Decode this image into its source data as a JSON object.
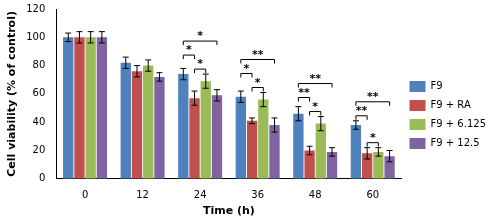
{
  "chart_data": {
    "type": "bar",
    "x_label": "Time (h)",
    "y_label": "Cell viability (% of control)",
    "categories": [
      "0",
      "12",
      "24",
      "36",
      "48",
      "60"
    ],
    "series": [
      {
        "name": "F9",
        "color": "#4f81bd",
        "values": [
          100,
          82,
          74,
          58,
          46,
          38
        ],
        "errors": [
          3,
          4,
          4,
          4,
          5,
          3
        ]
      },
      {
        "name": "F9 + RA",
        "color": "#c0504d",
        "values": [
          100,
          76,
          57,
          41,
          20,
          18
        ],
        "errors": [
          4,
          4,
          5,
          2,
          3,
          4
        ]
      },
      {
        "name": "F9 + 6.125",
        "color": "#9bbb59",
        "values": [
          100,
          80,
          69,
          56,
          39,
          19
        ],
        "errors": [
          4,
          4,
          5,
          5,
          5,
          3
        ]
      },
      {
        "name": "F9 + 12.5",
        "color": "#8064a2",
        "values": [
          100,
          72,
          59,
          38,
          19,
          16
        ],
        "errors": [
          4,
          3,
          4,
          5,
          3,
          4
        ]
      }
    ],
    "ylim": [
      0,
      120
    ],
    "yticks": [
      0,
      20,
      40,
      60,
      80,
      100,
      120
    ],
    "grid": false,
    "legend": "right",
    "comparisons": [
      {
        "category": "24",
        "groups": [
          "F9 + RA",
          "F9 + 6.125"
        ],
        "label": "*"
      },
      {
        "category": "24",
        "groups": [
          "F9",
          "F9 + RA"
        ],
        "label": "*"
      },
      {
        "category": "24",
        "groups": [
          "F9",
          "F9 + 12.5"
        ],
        "label": "*"
      },
      {
        "category": "36",
        "groups": [
          "F9 + RA",
          "F9 + 6.125"
        ],
        "label": "*"
      },
      {
        "category": "36",
        "groups": [
          "F9",
          "F9 + RA"
        ],
        "label": "*"
      },
      {
        "category": "36",
        "groups": [
          "F9",
          "F9 + 12.5"
        ],
        "label": "**"
      },
      {
        "category": "48",
        "groups": [
          "F9 + RA",
          "F9 + 6.125"
        ],
        "label": "*"
      },
      {
        "category": "48",
        "groups": [
          "F9",
          "F9 + RA"
        ],
        "label": "**"
      },
      {
        "category": "48",
        "groups": [
          "F9",
          "F9 + 12.5"
        ],
        "label": "**"
      },
      {
        "category": "60",
        "groups": [
          "F9 + RA",
          "F9 + 6.125"
        ],
        "label": "*"
      },
      {
        "category": "60",
        "groups": [
          "F9",
          "F9 + RA"
        ],
        "label": "**"
      },
      {
        "category": "60",
        "groups": [
          "F9",
          "F9 + 12.5"
        ],
        "label": "**"
      }
    ]
  }
}
